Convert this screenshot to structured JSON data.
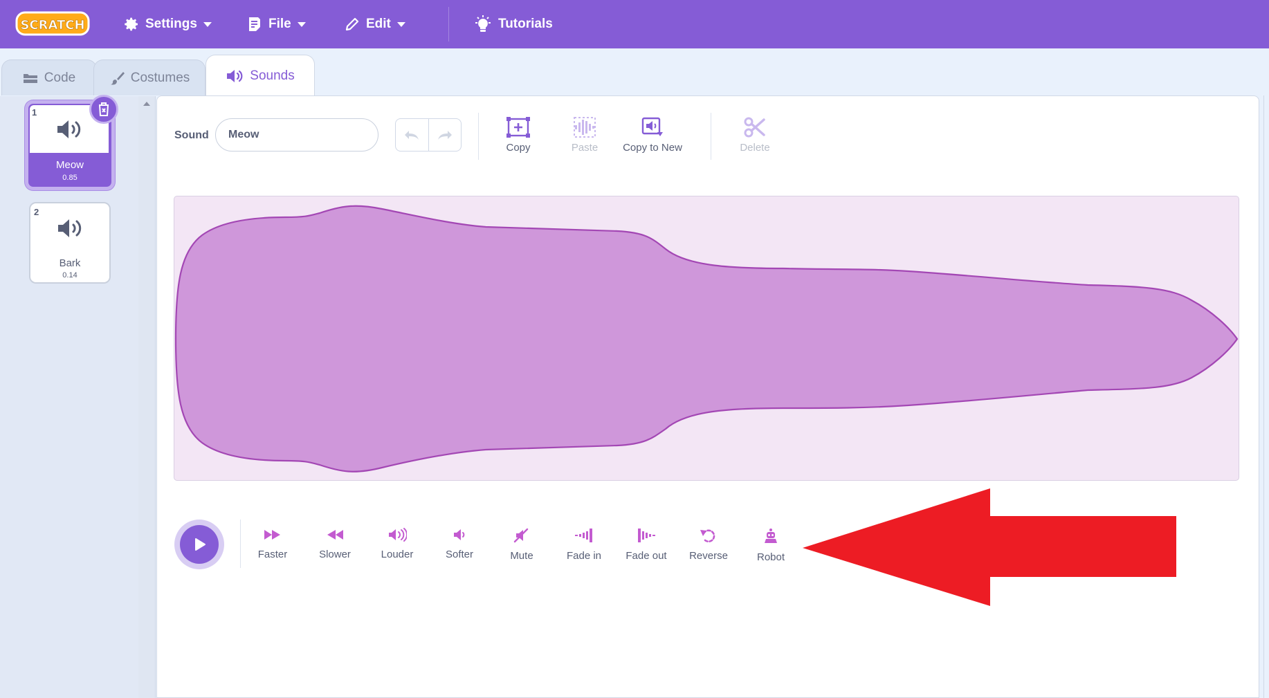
{
  "menu": {
    "logo_text": "SCRATCH",
    "settings_label": "Settings",
    "file_label": "File",
    "edit_label": "Edit",
    "tutorials_label": "Tutorials"
  },
  "tabs": [
    {
      "label": "Code",
      "icon": "code-blocks-icon"
    },
    {
      "label": "Costumes",
      "icon": "paintbrush-icon"
    },
    {
      "label": "Sounds",
      "icon": "speaker-icon",
      "active": true
    }
  ],
  "sounds": [
    {
      "number": "1",
      "name": "Meow",
      "duration": "0.85",
      "selected": true
    },
    {
      "number": "2",
      "name": "Bark",
      "duration": "0.14",
      "selected": false
    }
  ],
  "editor": {
    "sound_label": "Sound",
    "sound_name_value": "Meow",
    "tools": [
      {
        "label": "Copy",
        "icon": "copy-icon",
        "enabled": true
      },
      {
        "label": "Paste",
        "icon": "paste-icon",
        "enabled": false
      },
      {
        "label": "Copy to New",
        "icon": "copy-to-new-icon",
        "enabled": true
      },
      {
        "label": "Delete",
        "icon": "scissors-icon",
        "enabled": false
      }
    ],
    "effects": [
      {
        "label": "Faster",
        "icon": "faster-icon"
      },
      {
        "label": "Slower",
        "icon": "slower-icon"
      },
      {
        "label": "Louder",
        "icon": "louder-icon"
      },
      {
        "label": "Softer",
        "icon": "softer-icon"
      },
      {
        "label": "Mute",
        "icon": "mute-icon"
      },
      {
        "label": "Fade in",
        "icon": "fade-in-icon"
      },
      {
        "label": "Fade out",
        "icon": "fade-out-icon"
      },
      {
        "label": "Reverse",
        "icon": "reverse-icon"
      },
      {
        "label": "Robot",
        "icon": "robot-icon"
      }
    ]
  },
  "colors": {
    "brand_purple": "#855cd6",
    "wave_fill": "#cf97da",
    "wave_stroke": "#a347b4",
    "effect_icon": "#c35bd0",
    "annotation_arrow": "#ed1c24"
  }
}
